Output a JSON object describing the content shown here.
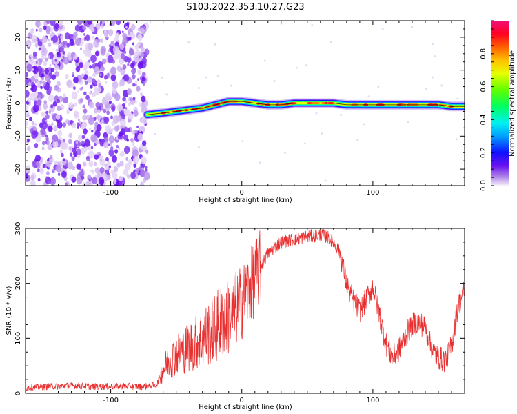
{
  "title": "S103.2022.353.10.27.G23",
  "chart_data": [
    {
      "type": "heatmap",
      "xlabel": "Height of straight line (km)",
      "ylabel": "Frequency (Hz)",
      "xlim": [
        -165,
        170
      ],
      "ylim": [
        -25,
        25
      ],
      "xticks": [
        -100,
        0,
        100
      ],
      "yticks": [
        -20,
        -10,
        0,
        10,
        20
      ],
      "colorbar": {
        "label": "Normalized spectral amplitude",
        "range": [
          0,
          1
        ],
        "ticks": [
          0.0,
          0.2,
          0.4,
          0.6,
          0.8
        ],
        "tick_labels": [
          "0.0",
          "0.2",
          "0.4",
          "0.6",
          "0.8"
        ],
        "colormap": "rainbow"
      },
      "noise_region_x": [
        -165,
        -72
      ],
      "signal_ridge": {
        "x": [
          -72,
          -60,
          -50,
          -40,
          -30,
          -20,
          -10,
          0,
          10,
          20,
          30,
          40,
          50,
          60,
          70,
          80,
          90,
          100,
          110,
          120,
          130,
          140,
          150,
          160,
          170
        ],
        "y": [
          -3.5,
          -3,
          -2.5,
          -2,
          -1.5,
          -0.5,
          0.5,
          0.5,
          0,
          -0.5,
          -0.5,
          0,
          0,
          0,
          0,
          -0.5,
          -0.5,
          -0.5,
          -0.5,
          -0.5,
          -0.5,
          -0.5,
          -0.5,
          -1,
          -1
        ]
      }
    },
    {
      "type": "line",
      "xlabel": "Height of straight line (km)",
      "ylabel": "SNR (10 * v/v)",
      "xlim": [
        -165,
        170
      ],
      "ylim": [
        0,
        300
      ],
      "xticks": [
        -100,
        0,
        100
      ],
      "yticks": [
        0,
        100,
        200,
        300
      ],
      "color": "#e83030",
      "x": [
        -165,
        -150,
        -130,
        -110,
        -90,
        -75,
        -65,
        -60,
        -55,
        -50,
        -40,
        -30,
        -20,
        -10,
        0,
        10,
        20,
        30,
        40,
        50,
        60,
        65,
        70,
        75,
        80,
        85,
        90,
        95,
        100,
        105,
        110,
        115,
        120,
        125,
        130,
        135,
        140,
        145,
        150,
        155,
        160,
        165,
        170
      ],
      "y": [
        10,
        12,
        14,
        12,
        13,
        12,
        15,
        45,
        60,
        70,
        85,
        100,
        120,
        140,
        165,
        210,
        255,
        275,
        280,
        285,
        288,
        285,
        275,
        255,
        200,
        170,
        150,
        170,
        195,
        145,
        90,
        65,
        80,
        105,
        125,
        130,
        120,
        80,
        65,
        60,
        85,
        160,
        190
      ]
    }
  ]
}
